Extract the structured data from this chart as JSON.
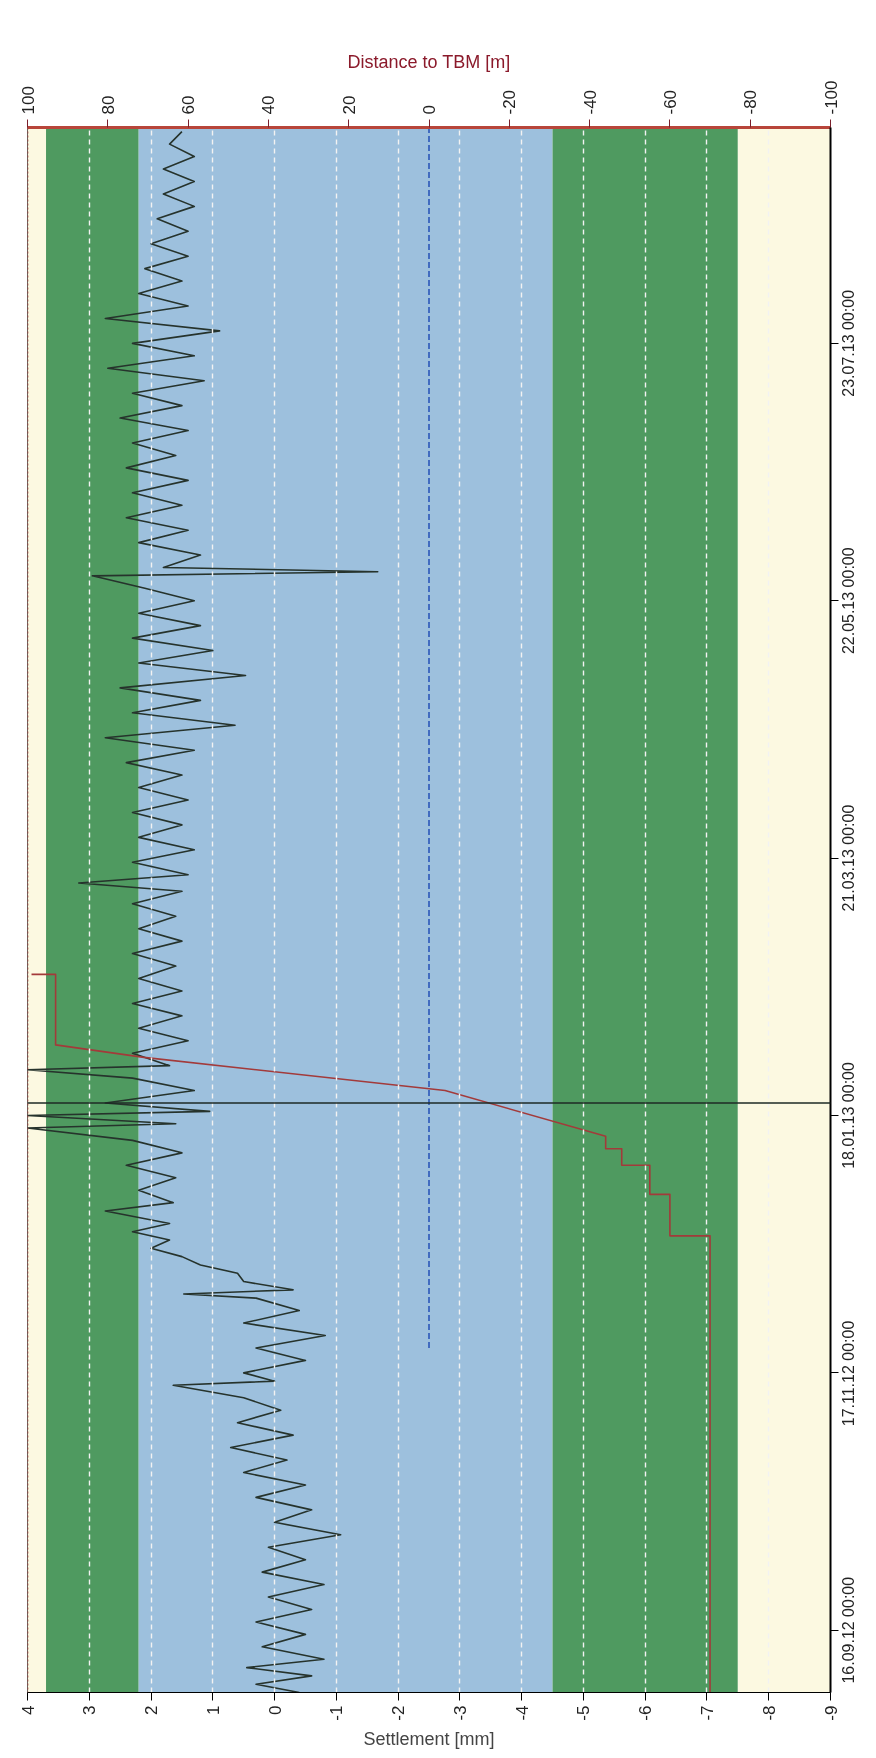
{
  "chart_data": {
    "type": "line",
    "orientation": "horizontal",
    "xlabel": "Settlement [mm]",
    "x2label": "Distance to TBM [m]",
    "ylim": [
      "2012-09-01",
      "2013-09-13"
    ],
    "yticks": [
      {
        "value": "2012-09-16",
        "label": "16.09.12 00:00"
      },
      {
        "value": "2012-11-17",
        "label": "17.11.12 00:00"
      },
      {
        "value": "2013-01-18",
        "label": "18.01.13 00:00"
      },
      {
        "value": "2013-03-21",
        "label": "21.03.13 00:00"
      },
      {
        "value": "2013-05-22",
        "label": "22.05.13 00:00"
      },
      {
        "value": "2013-07-23",
        "label": "23.07.13 00:00"
      }
    ],
    "xlim": [
      4,
      -9
    ],
    "xticks": [
      4,
      3,
      2,
      1,
      0,
      -1,
      -2,
      -3,
      -4,
      -5,
      -6,
      -7,
      -8,
      -9
    ],
    "x2lim": [
      100,
      -100
    ],
    "x2ticks": [
      100,
      80,
      60,
      40,
      20,
      0,
      -20,
      -40,
      -60,
      -80,
      -100
    ],
    "grid": "x",
    "bands": [
      {
        "axis": "x",
        "from": 4,
        "to": 3.7,
        "color": "#fcf9e1"
      },
      {
        "axis": "x",
        "from": 3.7,
        "to": 2.2,
        "color": "#4f9a60"
      },
      {
        "axis": "x",
        "from": 2.2,
        "to": -4.5,
        "color": "#9dc0dd"
      },
      {
        "axis": "x",
        "from": -4.5,
        "to": -7.5,
        "color": "#4f9a60"
      },
      {
        "axis": "x",
        "from": -7.5,
        "to": -9,
        "color": "#fcf9e1"
      }
    ],
    "ref_lines": [
      {
        "axis": "y",
        "value": "2013-01-21",
        "color": "#1e2a24",
        "line_style": "solid"
      },
      {
        "axis": "x2",
        "value": 100,
        "color": "#a33a3a",
        "line_style": "dotted"
      }
    ],
    "series": [
      {
        "color": "#26332c",
        "line_style": "solid",
        "x": [
          "2012-09-01",
          "2012-09-03",
          "2012-09-05",
          "2012-09-07",
          "2012-09-09",
          "2012-09-12",
          "2012-09-15",
          "2012-09-18",
          "2012-09-21",
          "2012-09-24",
          "2012-09-27",
          "2012-09-30",
          "2012-10-03",
          "2012-10-06",
          "2012-10-09",
          "2012-10-12",
          "2012-10-15",
          "2012-10-18",
          "2012-10-21",
          "2012-10-24",
          "2012-10-27",
          "2012-10-30",
          "2012-11-02",
          "2012-11-05",
          "2012-11-08",
          "2012-11-11",
          "2012-11-14",
          "2012-11-15",
          "2012-11-17",
          "2012-11-20",
          "2012-11-23",
          "2012-11-26",
          "2012-11-29",
          "2012-12-02",
          "2012-12-05",
          "2012-12-06",
          "2012-12-07",
          "2012-12-09",
          "2012-12-11",
          "2012-12-13",
          "2012-12-15",
          "2012-12-17",
          "2012-12-19",
          "2012-12-21",
          "2012-12-23",
          "2012-12-26",
          "2012-12-28",
          "2012-12-31",
          "2013-01-03",
          "2013-01-06",
          "2013-01-09",
          "2013-01-12",
          "2013-01-15",
          "2013-01-16",
          "2013-01-18",
          "2013-01-19",
          "2013-01-21",
          "2013-01-24",
          "2013-01-27",
          "2013-01-29",
          "2013-01-30",
          "2013-02-02",
          "2013-02-05",
          "2013-02-08",
          "2013-02-11",
          "2013-02-14",
          "2013-02-17",
          "2013-02-20",
          "2013-02-23",
          "2013-02-26",
          "2013-03-01",
          "2013-03-04",
          "2013-03-07",
          "2013-03-10",
          "2013-03-13",
          "2013-03-15",
          "2013-03-17",
          "2013-03-20",
          "2013-03-23",
          "2013-03-26",
          "2013-03-29",
          "2013-04-01",
          "2013-04-04",
          "2013-04-07",
          "2013-04-10",
          "2013-04-13",
          "2013-04-16",
          "2013-04-19",
          "2013-04-22",
          "2013-04-25",
          "2013-04-28",
          "2013-05-01",
          "2013-05-04",
          "2013-05-07",
          "2013-05-10",
          "2013-05-13",
          "2013-05-16",
          "2013-05-19",
          "2013-05-22",
          "2013-05-25",
          "2013-05-28",
          "2013-05-29",
          "2013-05-30",
          "2013-06-02",
          "2013-06-05",
          "2013-06-08",
          "2013-06-11",
          "2013-06-14",
          "2013-06-17",
          "2013-06-20",
          "2013-06-23",
          "2013-06-26",
          "2013-06-29",
          "2013-07-02",
          "2013-07-05",
          "2013-07-08",
          "2013-07-11",
          "2013-07-14",
          "2013-07-17",
          "2013-07-20",
          "2013-07-23",
          "2013-07-26",
          "2013-07-29",
          "2013-08-01",
          "2013-08-04",
          "2013-08-07",
          "2013-08-10",
          "2013-08-13",
          "2013-08-16",
          "2013-08-19",
          "2013-08-22",
          "2013-08-25",
          "2013-08-28",
          "2013-08-31",
          "2013-09-03",
          "2013-09-06",
          "2013-09-09",
          "2013-09-12"
        ],
        "values": [
          -0.4,
          0.3,
          -0.6,
          0.45,
          -0.8,
          0.2,
          -0.5,
          0.3,
          -0.6,
          0.1,
          -0.8,
          0.2,
          -0.5,
          0.1,
          -1.07,
          0.0,
          -0.6,
          0.3,
          -0.5,
          0.5,
          -0.2,
          0.71,
          -0.3,
          0.6,
          -0.1,
          0.5,
          1.64,
          0.0,
          0.5,
          -0.5,
          0.3,
          -0.82,
          0.5,
          -0.4,
          0.3,
          1.47,
          -0.3,
          0.5,
          0.6,
          1.2,
          1.5,
          2.0,
          1.7,
          2.3,
          1.7,
          2.74,
          1.64,
          2.2,
          1.6,
          2.4,
          1.5,
          2.3,
          4,
          1.6,
          4,
          1.05,
          2.74,
          1.3,
          2.3,
          4,
          1.7,
          2.3,
          1.4,
          2.2,
          1.5,
          2.3,
          1.5,
          2.2,
          1.6,
          2.3,
          1.5,
          2.2,
          1.6,
          2.3,
          1.5,
          3.17,
          1.4,
          2.3,
          1.3,
          2.2,
          1.5,
          2.3,
          1.4,
          2.2,
          1.5,
          2.4,
          1.3,
          2.74,
          0.64,
          2.3,
          1.2,
          2.5,
          0.47,
          2.2,
          1.0,
          2.3,
          1.2,
          2.2,
          1.3,
          2.1,
          2.95,
          -1.67,
          1.8,
          1.2,
          2.2,
          1.4,
          2.4,
          1.5,
          2.3,
          1.4,
          2.4,
          1.6,
          2.3,
          1.4,
          2.5,
          1.5,
          2.3,
          1.14,
          2.7,
          1.3,
          2.3,
          0.89,
          2.74,
          1.4,
          2.2,
          1.5,
          2.1,
          1.4,
          2.0,
          1.4,
          1.9,
          1.3,
          1.8,
          1.3,
          1.8,
          1.3,
          1.7,
          1.5
        ]
      },
      {
        "axis": "x2",
        "color": "#a33a3a",
        "line_style": "solid",
        "x": [
          "2012-09-01",
          "2012-12-20",
          "2012-12-20",
          "2012-12-30",
          "2012-12-30",
          "2013-01-06",
          "2013-01-06",
          "2013-01-10",
          "2013-01-10",
          "2013-01-13",
          "2013-01-24",
          "2013-02-01",
          "2013-02-04",
          "2013-02-21",
          "2013-02-21"
        ],
        "values": [
          -70,
          -70,
          -60,
          -60,
          -55,
          -55,
          -48,
          -48,
          -44,
          -44,
          -4,
          71,
          93,
          93,
          99
        ]
      },
      {
        "axis": "x2",
        "color": "#2b56b8",
        "line_style": "dashed",
        "x": [
          "2012-11-23",
          "2013-09-13"
        ],
        "values": [
          0,
          0
        ]
      }
    ]
  }
}
